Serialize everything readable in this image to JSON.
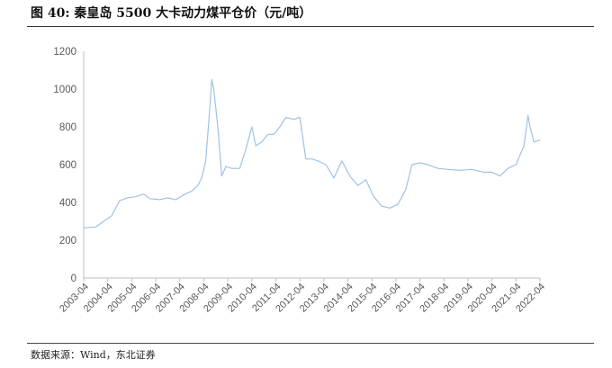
{
  "figure": {
    "title": "图  40:  秦皇岛 5500 大卡动力煤平仓价（元/吨）",
    "source": "数据来源：Wind，东北证券"
  },
  "chart_data": {
    "type": "line",
    "title": "",
    "xlabel": "",
    "ylabel": "",
    "ylim": [
      0,
      1200
    ],
    "yticks": [
      0,
      200,
      400,
      600,
      800,
      1000,
      1200
    ],
    "xticks": [
      "2003-04",
      "2004-04",
      "2005-04",
      "2006-04",
      "2007-04",
      "2008-04",
      "2009-04",
      "2010-04",
      "2011-04",
      "2012-04",
      "2013-04",
      "2014-04",
      "2015-04",
      "2016-04",
      "2017-04",
      "2018-04",
      "2019-04",
      "2020-04",
      "2021-04",
      "2022-04"
    ],
    "grid": false,
    "legend": "none",
    "series": [
      {
        "color": "#9dc3e6",
        "points": [
          [
            "2003-04",
            265
          ],
          [
            "2003-10",
            270
          ],
          [
            "2004-02",
            300
          ],
          [
            "2004-06",
            330
          ],
          [
            "2004-10",
            410
          ],
          [
            "2005-02",
            425
          ],
          [
            "2005-06",
            430
          ],
          [
            "2005-10",
            445
          ],
          [
            "2006-01",
            420
          ],
          [
            "2006-06",
            415
          ],
          [
            "2006-10",
            425
          ],
          [
            "2007-02",
            415
          ],
          [
            "2007-06",
            440
          ],
          [
            "2007-10",
            460
          ],
          [
            "2008-01",
            490
          ],
          [
            "2008-03",
            530
          ],
          [
            "2008-05",
            620
          ],
          [
            "2008-07",
            900
          ],
          [
            "2008-08",
            1050
          ],
          [
            "2008-09",
            1000
          ],
          [
            "2008-11",
            800
          ],
          [
            "2009-01",
            540
          ],
          [
            "2009-03",
            590
          ],
          [
            "2009-06",
            580
          ],
          [
            "2009-10",
            580
          ],
          [
            "2010-01",
            680
          ],
          [
            "2010-04",
            800
          ],
          [
            "2010-06",
            700
          ],
          [
            "2010-09",
            720
          ],
          [
            "2010-12",
            760
          ],
          [
            "2011-03",
            760
          ],
          [
            "2011-06",
            800
          ],
          [
            "2011-09",
            850
          ],
          [
            "2012-01",
            840
          ],
          [
            "2012-04",
            850
          ],
          [
            "2012-07",
            630
          ],
          [
            "2012-10",
            630
          ],
          [
            "2013-01",
            620
          ],
          [
            "2013-05",
            600
          ],
          [
            "2013-09",
            530
          ],
          [
            "2014-01",
            620
          ],
          [
            "2014-05",
            540
          ],
          [
            "2014-09",
            490
          ],
          [
            "2015-01",
            520
          ],
          [
            "2015-05",
            430
          ],
          [
            "2015-09",
            380
          ],
          [
            "2016-01",
            370
          ],
          [
            "2016-05",
            390
          ],
          [
            "2016-09",
            470
          ],
          [
            "2016-12",
            600
          ],
          [
            "2017-04",
            610
          ],
          [
            "2017-08",
            600
          ],
          [
            "2018-01",
            580
          ],
          [
            "2018-06",
            575
          ],
          [
            "2018-12",
            570
          ],
          [
            "2019-06",
            575
          ],
          [
            "2019-12",
            560
          ],
          [
            "2020-04",
            560
          ],
          [
            "2020-08",
            540
          ],
          [
            "2020-12",
            580
          ],
          [
            "2021-04",
            600
          ],
          [
            "2021-08",
            700
          ],
          [
            "2021-10",
            860
          ],
          [
            "2021-11",
            800
          ],
          [
            "2022-01",
            720
          ],
          [
            "2022-04",
            730
          ]
        ]
      }
    ]
  }
}
